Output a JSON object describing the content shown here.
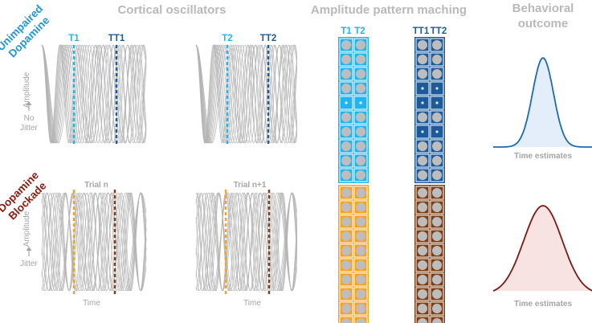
{
  "titles": {
    "oscillators": "Cortical oscillators",
    "matching": "Amplitude pattern maching",
    "behavior_line1": "Behavioral",
    "behavior_line2": "outcome"
  },
  "conditions": {
    "top_line1": "Unimpaired",
    "top_line2": "Dopamine",
    "bottom_line1": "Dopamine",
    "bottom_line2": "Blockade"
  },
  "oscillator_labels": {
    "amplitude": "Amplitude",
    "no": "No",
    "jitter": "Jitter",
    "time": "Time",
    "trial_n": "Trial n",
    "trial_n1": "Trial n+1"
  },
  "markers": {
    "t1": "T1",
    "t2": "T2",
    "tt1": "TT1",
    "tt2": "TT2"
  },
  "pattern_column_labels": {
    "t1": "T1",
    "t2": "T2",
    "tt1": "TT1",
    "tt2": "TT2"
  },
  "outcome": {
    "xlabel_top": "Time estimates",
    "xlabel_bottom": "Time estimates"
  },
  "colors": {
    "gray_text": "#b9b9b9",
    "t1_light_blue": "#22b4ec",
    "tt1_dark_blue": "#1c5a9a",
    "t_orange": "#f4a31e",
    "tt_brown": "#7b3e15",
    "cond_top": "#2196d8",
    "cond_bottom": "#8e1a10",
    "curve_top_stroke": "#1e6ab1",
    "curve_top_fill": "#e4eefa",
    "curve_bottom_stroke": "#7a1a12",
    "curve_bottom_fill": "#f7e3e1"
  }
}
